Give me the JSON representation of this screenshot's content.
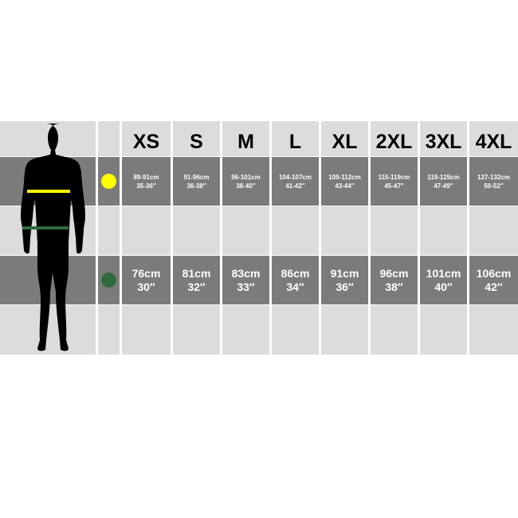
{
  "sizes": [
    "XS",
    "S",
    "M",
    "L",
    "XL",
    "2XL",
    "3XL",
    "4XL"
  ],
  "chest": {
    "indicator_color": "#ffff00",
    "cm": [
      "89-91cm",
      "91-96cm",
      "96-101cm",
      "104-107cm",
      "109-112cm",
      "115-119cm",
      "119-125cm",
      "127-132cm"
    ],
    "inch": [
      "35-36″",
      "36-38″",
      "38-40″",
      "41-42″",
      "43-44″",
      "45-47″",
      "47-49″",
      "50-52″"
    ]
  },
  "waist": {
    "indicator_color": "#2f6b3f",
    "cm": [
      "76cm",
      "81cm",
      "83cm",
      "86cm",
      "91cm",
      "96cm",
      "101cm",
      "106cm"
    ],
    "inch": [
      "30″",
      "32″",
      "33″",
      "34″",
      "36″",
      "38″",
      "40″",
      "42″"
    ]
  }
}
